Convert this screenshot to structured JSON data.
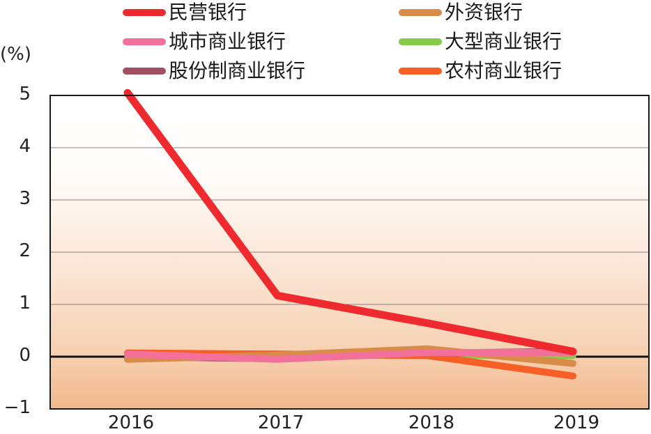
{
  "chart_data": {
    "type": "line",
    "title": "",
    "xlabel": "",
    "ylabel": "(%)",
    "unit_label": "(%)",
    "categories": [
      "2016",
      "2017",
      "2018",
      "2019"
    ],
    "ylim": [
      -1,
      5
    ],
    "yticks": [
      "5",
      "4",
      "3",
      "2",
      "1",
      "0",
      "−1"
    ],
    "grid": true,
    "legend_position": "top",
    "series": [
      {
        "name": "民营银行",
        "color": "#ee2a2f",
        "values": [
          5.05,
          1.17,
          0.64,
          0.1
        ]
      },
      {
        "name": "外资银行",
        "color": "#d98b4a",
        "values": [
          -0.05,
          0.03,
          0.15,
          -0.13
        ]
      },
      {
        "name": "城市商业银行",
        "color": "#f27099",
        "values": [
          0.05,
          -0.05,
          0.08,
          0.08
        ]
      },
      {
        "name": "大型商业银行",
        "color": "#86c94a",
        "values": [
          0.02,
          0.02,
          0.03,
          0.02
        ]
      },
      {
        "name": "股份制商业银行",
        "color": "#a14f63",
        "values": [
          0.0,
          -0.04,
          0.07,
          0.1
        ]
      },
      {
        "name": "农村商业银行",
        "color": "#f65f26",
        "values": [
          0.07,
          0.05,
          0.02,
          -0.37
        ]
      }
    ]
  },
  "legend": {
    "items": [
      {
        "label": "民营银行",
        "color": "#ee2a2f"
      },
      {
        "label": "城市商业银行",
        "color": "#f27099"
      },
      {
        "label": "股份制商业银行",
        "color": "#a14f63"
      },
      {
        "label": "外资银行",
        "color": "#d98b4a"
      },
      {
        "label": "大型商业银行",
        "color": "#86c94a"
      },
      {
        "label": "农村商业银行",
        "color": "#f65f26"
      }
    ]
  },
  "axis": {
    "unit": "(%)",
    "y_labels": [
      "5",
      "4",
      "3",
      "2",
      "1",
      "0",
      "−1"
    ],
    "x_labels": [
      "2016",
      "2017",
      "2018",
      "2019"
    ]
  }
}
